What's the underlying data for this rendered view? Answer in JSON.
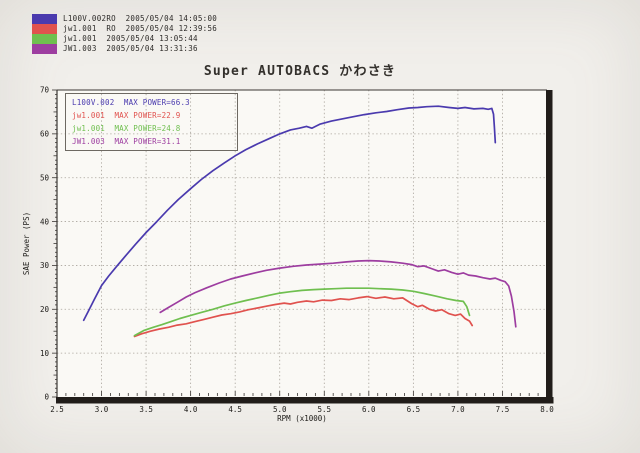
{
  "header": {
    "runs": [
      {
        "text": "L100V.002RO  2005/05/04 14:05:00",
        "color": "#4a3aae"
      },
      {
        "text": "jw1.001  RO  2005/05/04 12:39:56",
        "color": "#e0524e"
      },
      {
        "text": "jw1.001  2005/05/04 13:05:44",
        "color": "#6fbf4f"
      },
      {
        "text": "JW1.003  2005/05/04 13:31:36",
        "color": "#9d3da0"
      }
    ]
  },
  "chart_data": {
    "type": "line",
    "title": "Super AUTOBACS かわさき",
    "xlabel": "RPM (x1000)",
    "ylabel": "SAE Power (PS)",
    "xlim": [
      2.5,
      8.0
    ],
    "ylim": [
      0,
      70
    ],
    "x_tick_labels": [
      "2.5",
      "3.0",
      "3.5",
      "4.0",
      "4.5",
      "5.0",
      "5.5",
      "6.0",
      "6.5",
      "7.0",
      "7.5",
      "8.0"
    ],
    "y_tick_labels": [
      "0",
      "10",
      "20",
      "30",
      "40",
      "50",
      "60",
      "70"
    ],
    "x_minor_tick_step": 0.1,
    "y_minor_tick_step": 1,
    "grid": "dotted",
    "grid_color": "#a9a49c",
    "axis_color": "#3a3633",
    "frame_thick_color": "#211d1a",
    "tick_label_color": "#1c1a17",
    "legend_position": "top-left-inside",
    "series": [
      {
        "name": "L100V.002",
        "legend_text": "L100V.002  MAX POWER=66.3",
        "max_power": 66.3,
        "color": "#4a3aae",
        "points": [
          [
            2.8,
            17.5
          ],
          [
            2.85,
            19.5
          ],
          [
            2.92,
            22.3
          ],
          [
            3.0,
            25.4
          ],
          [
            3.08,
            27.6
          ],
          [
            3.17,
            29.8
          ],
          [
            3.27,
            32.2
          ],
          [
            3.38,
            34.8
          ],
          [
            3.5,
            37.5
          ],
          [
            3.62,
            40.0
          ],
          [
            3.74,
            42.6
          ],
          [
            3.86,
            45.0
          ],
          [
            4.0,
            47.5
          ],
          [
            4.12,
            49.6
          ],
          [
            4.25,
            51.6
          ],
          [
            4.38,
            53.4
          ],
          [
            4.5,
            55.0
          ],
          [
            4.62,
            56.4
          ],
          [
            4.75,
            57.7
          ],
          [
            4.88,
            58.9
          ],
          [
            5.0,
            60.0
          ],
          [
            5.12,
            60.9
          ],
          [
            5.22,
            61.3
          ],
          [
            5.3,
            61.7
          ],
          [
            5.36,
            61.3
          ],
          [
            5.45,
            62.2
          ],
          [
            5.58,
            62.9
          ],
          [
            5.7,
            63.4
          ],
          [
            5.82,
            63.9
          ],
          [
            5.95,
            64.4
          ],
          [
            6.08,
            64.8
          ],
          [
            6.2,
            65.1
          ],
          [
            6.32,
            65.5
          ],
          [
            6.45,
            65.9
          ],
          [
            6.55,
            66.0
          ],
          [
            6.65,
            66.2
          ],
          [
            6.78,
            66.3
          ],
          [
            6.9,
            66.0
          ],
          [
            7.0,
            65.8
          ],
          [
            7.08,
            66.0
          ],
          [
            7.18,
            65.7
          ],
          [
            7.28,
            65.8
          ],
          [
            7.34,
            65.6
          ],
          [
            7.38,
            65.8
          ],
          [
            7.4,
            64.5
          ],
          [
            7.41,
            61.5
          ],
          [
            7.42,
            58.0
          ]
        ]
      },
      {
        "name": "jw1.001 RO",
        "legend_text": "jw1.001  MAX POWER=22.9",
        "max_power": 22.9,
        "color": "#e0524e",
        "points": [
          [
            3.37,
            13.8
          ],
          [
            3.45,
            14.4
          ],
          [
            3.55,
            15.0
          ],
          [
            3.65,
            15.5
          ],
          [
            3.75,
            15.9
          ],
          [
            3.85,
            16.4
          ],
          [
            3.95,
            16.7
          ],
          [
            4.05,
            17.2
          ],
          [
            4.15,
            17.7
          ],
          [
            4.25,
            18.2
          ],
          [
            4.35,
            18.7
          ],
          [
            4.45,
            19.0
          ],
          [
            4.55,
            19.4
          ],
          [
            4.65,
            19.9
          ],
          [
            4.75,
            20.3
          ],
          [
            4.85,
            20.7
          ],
          [
            4.95,
            21.1
          ],
          [
            5.05,
            21.4
          ],
          [
            5.12,
            21.2
          ],
          [
            5.2,
            21.6
          ],
          [
            5.3,
            21.9
          ],
          [
            5.38,
            21.7
          ],
          [
            5.48,
            22.1
          ],
          [
            5.58,
            22.0
          ],
          [
            5.68,
            22.4
          ],
          [
            5.78,
            22.2
          ],
          [
            5.88,
            22.6
          ],
          [
            5.98,
            22.9
          ],
          [
            6.08,
            22.5
          ],
          [
            6.18,
            22.8
          ],
          [
            6.28,
            22.4
          ],
          [
            6.38,
            22.6
          ],
          [
            6.48,
            21.3
          ],
          [
            6.55,
            20.6
          ],
          [
            6.6,
            20.9
          ],
          [
            6.68,
            20.0
          ],
          [
            6.75,
            19.6
          ],
          [
            6.82,
            19.9
          ],
          [
            6.9,
            19.0
          ],
          [
            6.97,
            18.6
          ],
          [
            7.03,
            18.9
          ],
          [
            7.08,
            17.9
          ],
          [
            7.13,
            17.3
          ],
          [
            7.16,
            16.3
          ]
        ]
      },
      {
        "name": "jw1.001",
        "legend_text": "jw1.001  MAX POWER=24.8",
        "max_power": 24.8,
        "color": "#6fbf4f",
        "points": [
          [
            3.37,
            14.0
          ],
          [
            3.48,
            15.2
          ],
          [
            3.58,
            15.9
          ],
          [
            3.68,
            16.5
          ],
          [
            3.78,
            17.2
          ],
          [
            3.88,
            17.9
          ],
          [
            4.0,
            18.6
          ],
          [
            4.12,
            19.3
          ],
          [
            4.25,
            20.0
          ],
          [
            4.38,
            20.8
          ],
          [
            4.5,
            21.4
          ],
          [
            4.62,
            22.0
          ],
          [
            4.75,
            22.6
          ],
          [
            4.88,
            23.2
          ],
          [
            5.0,
            23.7
          ],
          [
            5.12,
            24.0
          ],
          [
            5.25,
            24.3
          ],
          [
            5.38,
            24.5
          ],
          [
            5.5,
            24.6
          ],
          [
            5.62,
            24.7
          ],
          [
            5.75,
            24.8
          ],
          [
            5.88,
            24.8
          ],
          [
            6.0,
            24.8
          ],
          [
            6.12,
            24.7
          ],
          [
            6.25,
            24.6
          ],
          [
            6.38,
            24.4
          ],
          [
            6.5,
            24.1
          ],
          [
            6.62,
            23.6
          ],
          [
            6.75,
            23.0
          ],
          [
            6.88,
            22.4
          ],
          [
            6.98,
            22.0
          ],
          [
            7.06,
            21.8
          ],
          [
            7.1,
            20.6
          ],
          [
            7.13,
            18.6
          ]
        ]
      },
      {
        "name": "JW1.003",
        "legend_text": "JW1.003  MAX POWER=31.1",
        "max_power": 31.1,
        "color": "#9d3da0",
        "points": [
          [
            3.66,
            19.3
          ],
          [
            3.75,
            20.4
          ],
          [
            3.85,
            21.6
          ],
          [
            3.95,
            22.8
          ],
          [
            4.05,
            23.8
          ],
          [
            4.18,
            24.9
          ],
          [
            4.32,
            26.0
          ],
          [
            4.45,
            26.9
          ],
          [
            4.58,
            27.6
          ],
          [
            4.72,
            28.3
          ],
          [
            4.85,
            28.9
          ],
          [
            5.0,
            29.4
          ],
          [
            5.15,
            29.8
          ],
          [
            5.3,
            30.1
          ],
          [
            5.45,
            30.3
          ],
          [
            5.6,
            30.5
          ],
          [
            5.75,
            30.8
          ],
          [
            5.88,
            31.0
          ],
          [
            6.0,
            31.1
          ],
          [
            6.12,
            31.0
          ],
          [
            6.25,
            30.8
          ],
          [
            6.38,
            30.5
          ],
          [
            6.48,
            30.2
          ],
          [
            6.55,
            29.7
          ],
          [
            6.62,
            29.9
          ],
          [
            6.7,
            29.3
          ],
          [
            6.78,
            28.7
          ],
          [
            6.85,
            29.0
          ],
          [
            6.93,
            28.4
          ],
          [
            7.0,
            28.0
          ],
          [
            7.06,
            28.3
          ],
          [
            7.12,
            27.8
          ],
          [
            7.2,
            27.6
          ],
          [
            7.28,
            27.2
          ],
          [
            7.36,
            26.9
          ],
          [
            7.42,
            27.1
          ],
          [
            7.48,
            26.6
          ],
          [
            7.53,
            26.3
          ],
          [
            7.57,
            25.3
          ],
          [
            7.6,
            23.0
          ],
          [
            7.63,
            19.5
          ],
          [
            7.65,
            16.0
          ]
        ]
      }
    ]
  }
}
